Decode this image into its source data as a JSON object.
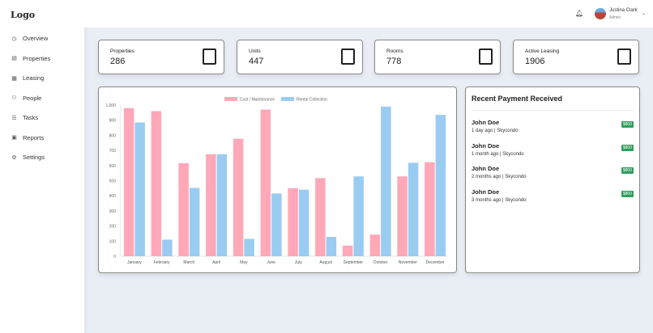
{
  "sidebar": {
    "logo": "Logo",
    "items": [
      {
        "label": "Overview",
        "icon": "clock-icon"
      },
      {
        "label": "Properties",
        "icon": "building-icon"
      },
      {
        "label": "Leasing",
        "icon": "document-icon"
      },
      {
        "label": "People",
        "icon": "people-icon"
      },
      {
        "label": "Tasks",
        "icon": "list-icon"
      },
      {
        "label": "Reports",
        "icon": "report-icon"
      },
      {
        "label": "Settings",
        "icon": "gear-icon"
      }
    ]
  },
  "header": {
    "user_name": "Justina Clark",
    "user_role": "Admin"
  },
  "stats": [
    {
      "label": "Properties",
      "value": "286",
      "icon": "building-icon"
    },
    {
      "label": "Units",
      "value": "447",
      "icon": "unit-icon"
    },
    {
      "label": "Rooms",
      "value": "778",
      "icon": "door-icon"
    },
    {
      "label": "Active Leasing",
      "value": "1906",
      "icon": "document-icon"
    }
  ],
  "payments": {
    "title": "Recent Payment Received",
    "items": [
      {
        "name": "John Doe",
        "meta": "1 day ago | Skycondo",
        "amount": "$800"
      },
      {
        "name": "John Doe",
        "meta": "1 month ago | Skycondo",
        "amount": "$800"
      },
      {
        "name": "John Doe",
        "meta": "2 months ago | Skycondo",
        "amount": "$800"
      },
      {
        "name": "John Doe",
        "meta": "3 months ago | Skycondo",
        "amount": "$800"
      }
    ]
  },
  "chart_data": {
    "type": "bar",
    "categories": [
      "January",
      "February",
      "March",
      "April",
      "May",
      "June",
      "July",
      "August",
      "September",
      "October",
      "November",
      "December"
    ],
    "series": [
      {
        "name": "Cost / Maintenance",
        "color": "#ffa8b8",
        "values": [
          980,
          960,
          615,
          675,
          777,
          970,
          450,
          517,
          70,
          143,
          528,
          622
        ]
      },
      {
        "name": "Rental Collection",
        "color": "#9accf2",
        "values": [
          885,
          110,
          452,
          675,
          115,
          415,
          440,
          128,
          528,
          990,
          618,
          935
        ]
      }
    ],
    "ylim": [
      0,
      1000
    ],
    "yticks": [
      "0",
      "100",
      "200",
      "300",
      "400",
      "500",
      "600",
      "700",
      "800",
      "900",
      "1,000"
    ],
    "legend": "top",
    "grid": false
  }
}
